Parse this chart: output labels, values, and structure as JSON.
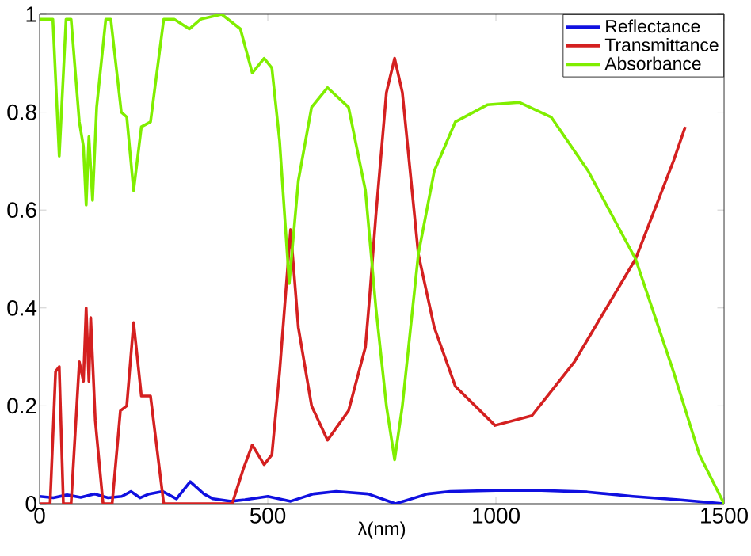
{
  "chart_data": {
    "type": "line",
    "xlabel": "λ(nm)",
    "xlim": [
      0,
      1500
    ],
    "xticks": [
      0,
      500,
      1000,
      1500
    ],
    "ylim": [
      0,
      1
    ],
    "yticks": [
      0,
      0.2,
      0.4,
      0.6,
      0.8,
      1
    ],
    "grid": false,
    "legend": "top right",
    "marker": "none",
    "line_style": "solid",
    "series": [
      {
        "name": "Reflectance",
        "color": "#1010e0",
        "x": [
          0,
          30,
          60,
          90,
          120,
          150,
          180,
          200,
          220,
          240,
          270,
          300,
          330,
          360,
          380,
          420,
          450,
          500,
          550,
          600,
          650,
          720,
          780,
          850,
          900,
          1000,
          1100,
          1200,
          1300,
          1400,
          1500
        ],
        "values": [
          0.015,
          0.012,
          0.018,
          0.013,
          0.02,
          0.012,
          0.015,
          0.025,
          0.012,
          0.02,
          0.025,
          0.01,
          0.045,
          0.02,
          0.01,
          0.005,
          0.008,
          0.015,
          0.005,
          0.02,
          0.025,
          0.02,
          0.0,
          0.02,
          0.025,
          0.027,
          0.027,
          0.024,
          0.015,
          0.008,
          0.0
        ]
      },
      {
        "name": "Transmittance",
        "color": "#d42020",
        "x": [
          0,
          23,
          35,
          43,
          52,
          69,
          87,
          96,
          102,
          108,
          112,
          122,
          139,
          159,
          177,
          191,
          206,
          223,
          243,
          272,
          422,
          446,
          466,
          492,
          509,
          526,
          550,
          567,
          596,
          631,
          677,
          714,
          723,
          737,
          760,
          778,
          795,
          830,
          865,
          911,
          998,
          1079,
          1172,
          1306,
          1389,
          1415
        ],
        "values": [
          0.0,
          0.0,
          0.27,
          0.28,
          0.0,
          0.0,
          0.29,
          0.25,
          0.4,
          0.25,
          0.38,
          0.17,
          0.0,
          0.0,
          0.19,
          0.2,
          0.37,
          0.22,
          0.22,
          0.0,
          0.0,
          0.07,
          0.12,
          0.08,
          0.1,
          0.27,
          0.56,
          0.36,
          0.2,
          0.13,
          0.19,
          0.32,
          0.42,
          0.59,
          0.84,
          0.91,
          0.84,
          0.51,
          0.36,
          0.24,
          0.16,
          0.18,
          0.29,
          0.5,
          0.7,
          0.77
        ]
      },
      {
        "name": "Absorbance",
        "color": "#80ee00",
        "x": [
          0,
          12,
          29,
          43,
          58,
          69,
          87,
          96,
          102,
          108,
          116,
          125,
          145,
          156,
          179,
          191,
          206,
          223,
          243,
          272,
          295,
          328,
          353,
          399,
          440,
          466,
          492,
          509,
          526,
          547,
          567,
          596,
          631,
          677,
          714,
          737,
          760,
          778,
          795,
          830,
          865,
          911,
          981,
          1051,
          1121,
          1202,
          1306,
          1389,
          1446,
          1500
        ],
        "values": [
          0.99,
          0.99,
          0.99,
          0.71,
          0.99,
          0.99,
          0.78,
          0.73,
          0.61,
          0.75,
          0.62,
          0.81,
          0.99,
          0.99,
          0.8,
          0.79,
          0.64,
          0.77,
          0.78,
          0.99,
          0.99,
          0.97,
          0.99,
          1.0,
          0.97,
          0.88,
          0.91,
          0.89,
          0.74,
          0.45,
          0.66,
          0.81,
          0.85,
          0.81,
          0.64,
          0.4,
          0.2,
          0.09,
          0.2,
          0.51,
          0.68,
          0.78,
          0.815,
          0.82,
          0.79,
          0.68,
          0.5,
          0.27,
          0.1,
          0.0
        ]
      }
    ]
  }
}
